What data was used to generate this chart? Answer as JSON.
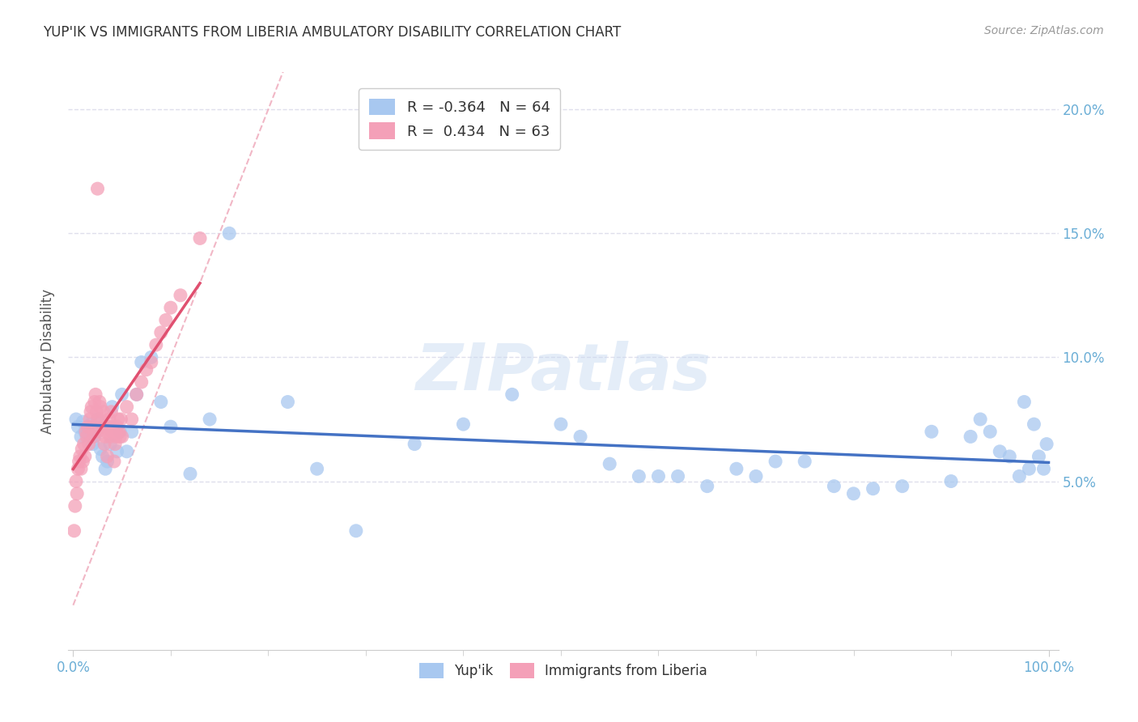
{
  "title": "YUP'IK VS IMMIGRANTS FROM LIBERIA AMBULATORY DISABILITY CORRELATION CHART",
  "source": "Source: ZipAtlas.com",
  "ylabel": "Ambulatory Disability",
  "watermark": "ZIPatlas",
  "legend_blue_R": "-0.364",
  "legend_blue_N": "64",
  "legend_pink_R": "0.434",
  "legend_pink_N": "63",
  "legend_blue_label": "Yup'ik",
  "legend_pink_label": "Immigrants from Liberia",
  "blue_color": "#A8C8F0",
  "pink_color": "#F4A0B8",
  "blue_line_color": "#4472C4",
  "pink_line_color": "#E05070",
  "diag_line_color": "#F0B0C0",
  "grid_color": "#D8D8E8",
  "tick_color": "#6BAED6",
  "bg_color": "#FFFFFF",
  "blue_scatter_x": [
    0.003,
    0.005,
    0.008,
    0.01,
    0.012,
    0.015,
    0.018,
    0.02,
    0.022,
    0.025,
    0.028,
    0.03,
    0.033,
    0.035,
    0.038,
    0.04,
    0.045,
    0.048,
    0.05,
    0.055,
    0.06,
    0.065,
    0.07,
    0.08,
    0.09,
    0.1,
    0.12,
    0.14,
    0.16,
    0.22,
    0.25,
    0.29,
    0.35,
    0.4,
    0.45,
    0.5,
    0.52,
    0.55,
    0.58,
    0.6,
    0.62,
    0.65,
    0.68,
    0.7,
    0.72,
    0.75,
    0.78,
    0.8,
    0.82,
    0.85,
    0.88,
    0.9,
    0.92,
    0.93,
    0.94,
    0.95,
    0.96,
    0.97,
    0.975,
    0.98,
    0.985,
    0.99,
    0.995,
    0.998
  ],
  "blue_scatter_y": [
    0.075,
    0.072,
    0.068,
    0.074,
    0.07,
    0.069,
    0.073,
    0.065,
    0.068,
    0.075,
    0.063,
    0.06,
    0.055,
    0.058,
    0.065,
    0.08,
    0.062,
    0.07,
    0.085,
    0.062,
    0.07,
    0.085,
    0.098,
    0.1,
    0.082,
    0.072,
    0.053,
    0.075,
    0.15,
    0.082,
    0.055,
    0.03,
    0.065,
    0.073,
    0.085,
    0.073,
    0.068,
    0.057,
    0.052,
    0.052,
    0.052,
    0.048,
    0.055,
    0.052,
    0.058,
    0.058,
    0.048,
    0.045,
    0.047,
    0.048,
    0.07,
    0.05,
    0.068,
    0.075,
    0.07,
    0.062,
    0.06,
    0.052,
    0.082,
    0.055,
    0.073,
    0.06,
    0.055,
    0.065
  ],
  "pink_scatter_x": [
    0.001,
    0.002,
    0.003,
    0.004,
    0.005,
    0.006,
    0.007,
    0.008,
    0.009,
    0.01,
    0.011,
    0.012,
    0.013,
    0.014,
    0.015,
    0.016,
    0.017,
    0.018,
    0.019,
    0.02,
    0.021,
    0.022,
    0.023,
    0.024,
    0.025,
    0.026,
    0.027,
    0.028,
    0.029,
    0.03,
    0.031,
    0.032,
    0.033,
    0.034,
    0.035,
    0.036,
    0.037,
    0.038,
    0.039,
    0.04,
    0.041,
    0.042,
    0.043,
    0.044,
    0.045,
    0.046,
    0.047,
    0.048,
    0.049,
    0.05,
    0.055,
    0.06,
    0.065,
    0.07,
    0.075,
    0.08,
    0.085,
    0.09,
    0.095,
    0.1,
    0.11,
    0.13,
    0.025
  ],
  "pink_scatter_y": [
    0.03,
    0.04,
    0.05,
    0.045,
    0.055,
    0.058,
    0.06,
    0.055,
    0.063,
    0.058,
    0.065,
    0.06,
    0.07,
    0.068,
    0.072,
    0.065,
    0.075,
    0.078,
    0.08,
    0.072,
    0.068,
    0.082,
    0.085,
    0.078,
    0.07,
    0.075,
    0.082,
    0.08,
    0.075,
    0.072,
    0.078,
    0.065,
    0.068,
    0.07,
    0.06,
    0.072,
    0.075,
    0.068,
    0.078,
    0.07,
    0.072,
    0.058,
    0.065,
    0.068,
    0.072,
    0.075,
    0.07,
    0.068,
    0.075,
    0.068,
    0.08,
    0.075,
    0.085,
    0.09,
    0.095,
    0.098,
    0.105,
    0.11,
    0.115,
    0.12,
    0.125,
    0.148,
    0.168
  ]
}
